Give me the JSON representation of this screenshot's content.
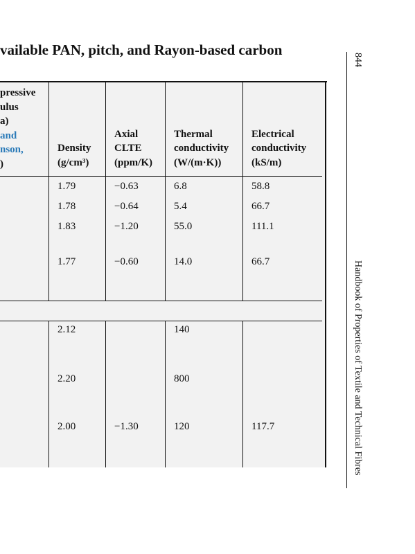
{
  "header": {
    "title": "vailable PAN, pitch, and Rayon-based carbon",
    "page_number": "844",
    "running_head": "Handbook of Properties of Textile and Technical Fibres"
  },
  "table": {
    "partial_header": {
      "lines": [
        "pressive",
        "ulus",
        "a)"
      ],
      "link_lines": [
        "and",
        "nson,"
      ],
      "closing": ")"
    },
    "columns": [
      {
        "lines": [
          "Density",
          "(g/cm³)"
        ]
      },
      {
        "lines": [
          "Axial",
          "CLTE",
          "(ppm/K)"
        ]
      },
      {
        "lines": [
          "Thermal",
          "conductivity",
          "(W/(m·K))"
        ]
      },
      {
        "lines": [
          "Electrical",
          "conductivity",
          "(kS/m)"
        ]
      }
    ],
    "rows": [
      [
        "1.79",
        "−0.63",
        "6.8",
        "58.8"
      ],
      [
        "1.78",
        "−0.64",
        "5.4",
        "66.7"
      ],
      [
        "1.83",
        "−1.20",
        "55.0",
        "111.1"
      ],
      [
        "1.77",
        "−0.60",
        "14.0",
        "66.7"
      ],
      [
        "2.12",
        null,
        "140",
        null
      ],
      [
        "2.20",
        null,
        "800",
        null
      ],
      [
        "2.00",
        "−1.30",
        "120",
        "117.7"
      ]
    ]
  }
}
